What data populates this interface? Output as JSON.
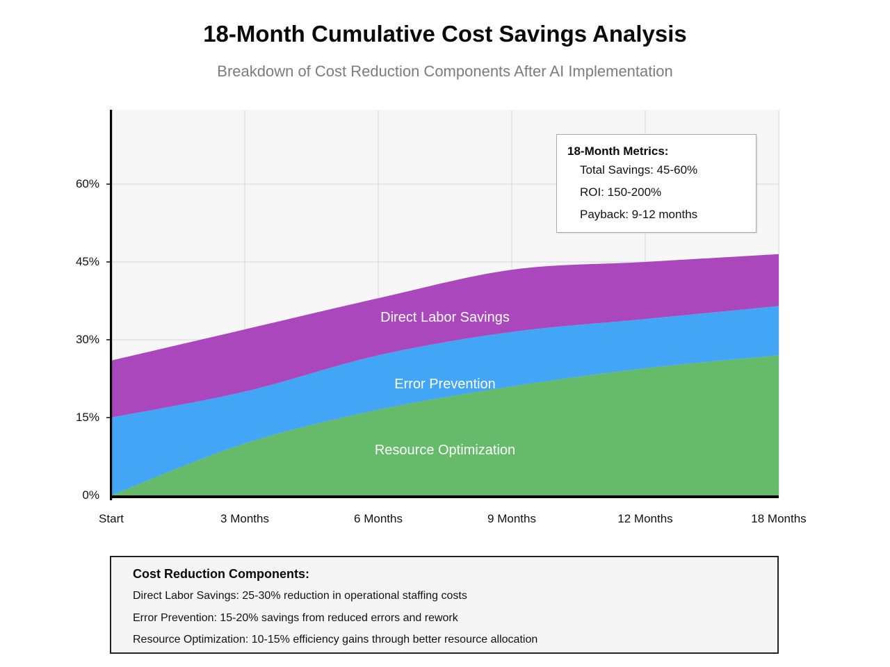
{
  "header": {
    "title": "18-Month Cumulative Cost Savings Analysis",
    "subtitle": "Breakdown of Cost Reduction Components After AI Implementation"
  },
  "chart_data": {
    "type": "area",
    "stacked": true,
    "x_labels": [
      "Start",
      "3 Months",
      "6 Months",
      "9 Months",
      "12 Months",
      "18 Months"
    ],
    "y_ticks": [
      "0%",
      "15%",
      "30%",
      "45%",
      "60%"
    ],
    "y_tick_values": [
      0,
      15,
      30,
      45,
      60
    ],
    "ylim": [
      0,
      74.5
    ],
    "grid": true,
    "plot_bg": "#f7f7f7",
    "grid_color": "#e0e0e0",
    "axis_color": "#111111",
    "series": [
      {
        "name": "Resource Optimization",
        "color": "#66bb6a",
        "cumulative_top": [
          0,
          10,
          16.5,
          21,
          24.5,
          27
        ]
      },
      {
        "name": "Error Prevention",
        "color": "#42a5f5",
        "cumulative_top": [
          15,
          20,
          27,
          31.5,
          34,
          36.5
        ]
      },
      {
        "name": "Direct Labor Savings",
        "color": "#ab47bc",
        "cumulative_top": [
          26,
          32,
          38,
          43.5,
          45,
          46.5
        ]
      }
    ]
  },
  "metrics_box": {
    "title": "18-Month Metrics:",
    "lines": [
      "Total Savings: 45-60%",
      "ROI: 150-200%",
      "Payback: 9-12 months"
    ]
  },
  "components_box": {
    "title": "Cost Reduction Components:",
    "lines": [
      "Direct Labor Savings: 25-30% reduction in operational staffing costs",
      "Error Prevention: 15-20% savings from reduced errors and rework",
      "Resource Optimization: 10-15% efficiency gains through better resource allocation"
    ]
  }
}
